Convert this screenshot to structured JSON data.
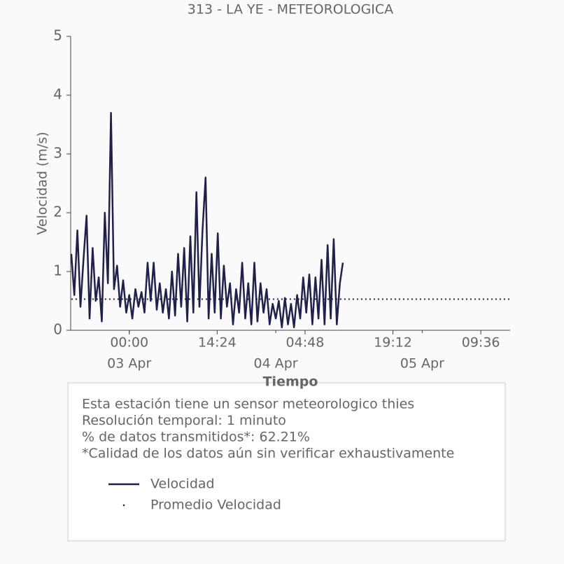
{
  "chart_data": {
    "type": "line",
    "title": "313 - LA YE - METEOROLOGICA",
    "xlabel": "Tiempo",
    "ylabel": "Velocidad (m/s)",
    "xlim": [
      "02 Apr 14:24",
      "05 Apr 14:24"
    ],
    "ylim": [
      0,
      5
    ],
    "yticks": [
      0,
      1,
      2,
      3,
      4,
      5
    ],
    "xticks": [
      {
        "value": "03 Apr 00:00",
        "label": "00:00"
      },
      {
        "value": "03 Apr 14:24",
        "label": "14:24"
      },
      {
        "value": "04 Apr 04:48",
        "label": "04:48"
      },
      {
        "value": "04 Apr 19:12",
        "label": "19:12"
      },
      {
        "value": "05 Apr 09:36",
        "label": "09:36"
      }
    ],
    "xticks_date": [
      {
        "value": "03 Apr 00:00",
        "label": "03 Apr"
      },
      {
        "value": "04 Apr 00:00",
        "label": "04 Apr"
      },
      {
        "value": "05 Apr 00:00",
        "label": "05 Apr"
      }
    ],
    "x": [
      "02 Apr 14:30",
      "02 Apr 15:00",
      "02 Apr 15:30",
      "02 Apr 16:00",
      "02 Apr 16:30",
      "02 Apr 17:00",
      "02 Apr 17:30",
      "02 Apr 18:00",
      "02 Apr 18:30",
      "02 Apr 19:00",
      "02 Apr 19:30",
      "02 Apr 20:00",
      "02 Apr 20:30",
      "02 Apr 21:00",
      "02 Apr 21:30",
      "02 Apr 22:00",
      "02 Apr 22:30",
      "02 Apr 23:00",
      "02 Apr 23:30",
      "03 Apr 00:00",
      "03 Apr 00:30",
      "03 Apr 01:00",
      "03 Apr 01:30",
      "03 Apr 02:00",
      "03 Apr 02:30",
      "03 Apr 03:00",
      "03 Apr 03:30",
      "03 Apr 04:00",
      "03 Apr 04:30",
      "03 Apr 05:00",
      "03 Apr 05:30",
      "03 Apr 06:00",
      "03 Apr 06:30",
      "03 Apr 07:00",
      "03 Apr 07:30",
      "03 Apr 08:00",
      "03 Apr 08:30",
      "03 Apr 09:00",
      "03 Apr 09:30",
      "03 Apr 10:00",
      "03 Apr 10:30",
      "03 Apr 11:00",
      "03 Apr 11:30",
      "03 Apr 12:00",
      "03 Apr 12:30",
      "03 Apr 13:00",
      "03 Apr 13:30",
      "03 Apr 14:00",
      "03 Apr 14:30",
      "03 Apr 15:00",
      "03 Apr 15:30",
      "03 Apr 16:00",
      "03 Apr 16:30",
      "03 Apr 17:00",
      "03 Apr 17:30",
      "03 Apr 18:00",
      "03 Apr 18:30",
      "03 Apr 19:00",
      "03 Apr 19:30",
      "03 Apr 20:00",
      "03 Apr 20:30",
      "03 Apr 21:00",
      "03 Apr 21:30",
      "03 Apr 22:00",
      "03 Apr 22:30",
      "03 Apr 23:00",
      "03 Apr 23:30",
      "04 Apr 00:00",
      "04 Apr 00:30",
      "04 Apr 01:00",
      "04 Apr 01:30",
      "04 Apr 02:00",
      "04 Apr 02:30",
      "04 Apr 03:00",
      "04 Apr 03:30",
      "04 Apr 04:00",
      "04 Apr 04:30",
      "04 Apr 05:00",
      "04 Apr 05:30",
      "04 Apr 06:00",
      "04 Apr 06:30",
      "04 Apr 07:00",
      "04 Apr 07:30",
      "04 Apr 08:00",
      "04 Apr 08:30",
      "04 Apr 09:00",
      "04 Apr 09:30",
      "04 Apr 10:00",
      "04 Apr 10:30",
      "04 Apr 11:00"
    ],
    "series": [
      {
        "name": "Velocidad",
        "color": "#20214a",
        "style": "solid",
        "values": [
          1.3,
          0.6,
          1.7,
          0.4,
          1.2,
          1.95,
          0.2,
          1.4,
          0.5,
          0.9,
          0.15,
          2.0,
          0.8,
          3.7,
          0.7,
          1.1,
          0.4,
          0.85,
          0.3,
          0.6,
          0.2,
          0.7,
          0.4,
          0.65,
          0.3,
          1.15,
          0.5,
          1.15,
          0.35,
          0.8,
          0.3,
          0.7,
          0.2,
          1.0,
          0.25,
          1.3,
          0.4,
          1.4,
          0.15,
          1.6,
          0.3,
          2.35,
          0.4,
          1.7,
          2.6,
          0.2,
          1.3,
          0.3,
          1.65,
          0.2,
          1.1,
          0.4,
          0.8,
          0.1,
          0.7,
          0.3,
          1.15,
          0.2,
          0.8,
          0.1,
          1.15,
          0.15,
          0.8,
          0.3,
          0.7,
          0.1,
          0.45,
          0.2,
          0.5,
          0.05,
          0.55,
          0.1,
          0.45,
          0.05,
          0.6,
          0.2,
          0.9,
          0.3,
          0.95,
          0.1,
          0.9,
          0.2,
          1.2,
          0.1,
          1.45,
          0.2,
          1.55,
          0.1,
          0.8,
          1.15
        ]
      },
      {
        "name": "Promedio Velocidad",
        "color": "#20214a",
        "style": "dotted",
        "x": [
          "02 Apr 14:30",
          "05 Apr 14:24"
        ],
        "values": [
          0.53,
          0.53
        ]
      }
    ],
    "info_text": [
      "Esta estación tiene un sensor meteorologico thies",
      "Resolución temporal: 1 minuto",
      "% de datos transmitidos*: 62.21%",
      "*Calidad de los datos aún sin verificar exhaustivamente"
    ]
  }
}
